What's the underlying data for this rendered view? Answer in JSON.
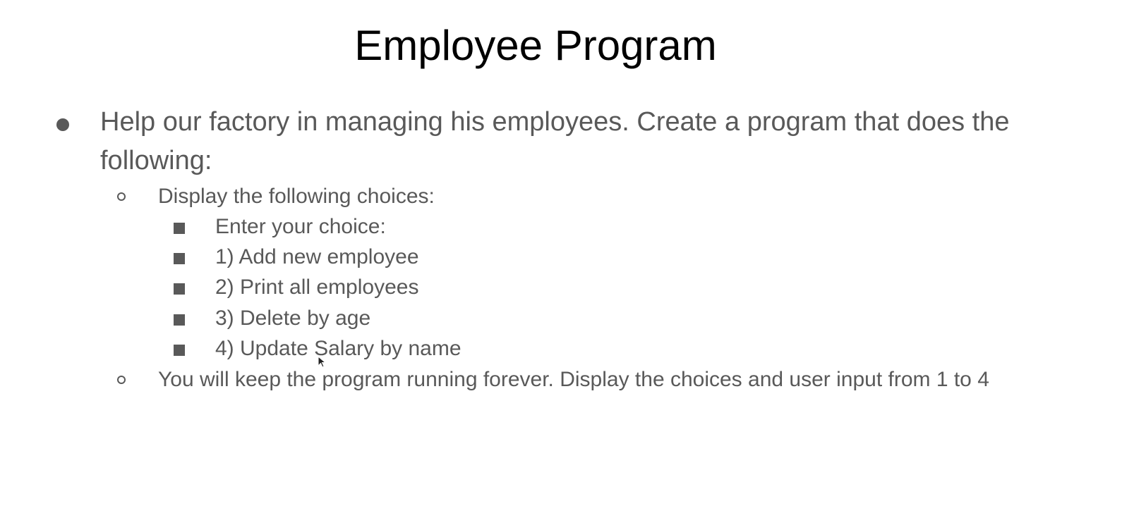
{
  "slide": {
    "title": "Employee Program",
    "main_point": "Help our factory in managing his employees. Create a program that does the following:",
    "sub_points": [
      {
        "text": "Display the following choices:",
        "items": [
          "Enter your choice:",
          "1) Add new employee",
          "2) Print all employees",
          "3) Delete by age",
          "4) Update Salary by name"
        ]
      },
      {
        "text": "You will keep the program running forever. Display the choices and user input from 1 to 4"
      }
    ]
  }
}
